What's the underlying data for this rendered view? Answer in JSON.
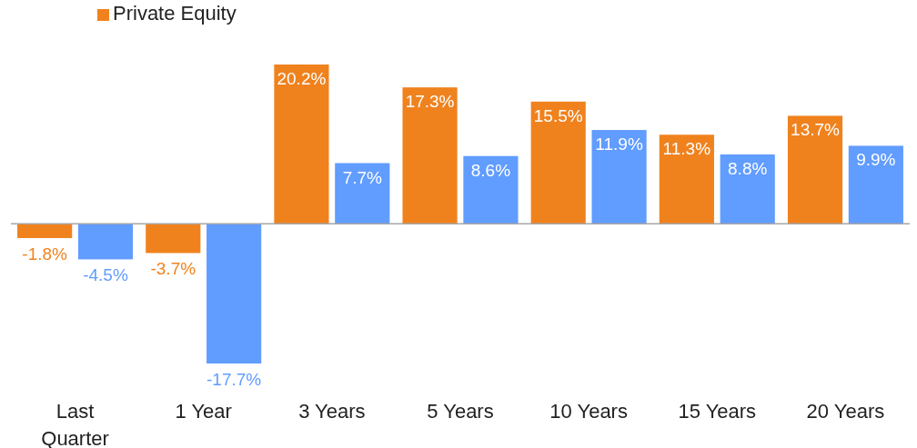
{
  "chart_data": {
    "type": "bar",
    "categories": [
      "Last\nQuarter",
      "1 Year",
      "3 Years",
      "5 Years",
      "10 Years",
      "15 Years",
      "20 Years"
    ],
    "series": [
      {
        "name": "Private Equity",
        "color": "#f0821e",
        "values": [
          -1.8,
          -3.7,
          20.2,
          17.3,
          15.5,
          11.3,
          13.7
        ],
        "value_labels": [
          "-1.8%",
          "-3.7%",
          "20.2%",
          "17.3%",
          "15.5%",
          "11.3%",
          "13.7%"
        ]
      },
      {
        "color": "#619cff",
        "values": [
          -4.5,
          -17.7,
          7.7,
          8.6,
          11.9,
          8.8,
          9.9
        ],
        "value_labels": [
          "-4.5%",
          "-17.7%",
          "7.7%",
          "8.6%",
          "11.9%",
          "8.8%",
          "9.9%"
        ]
      }
    ],
    "legend": "top left"
  }
}
